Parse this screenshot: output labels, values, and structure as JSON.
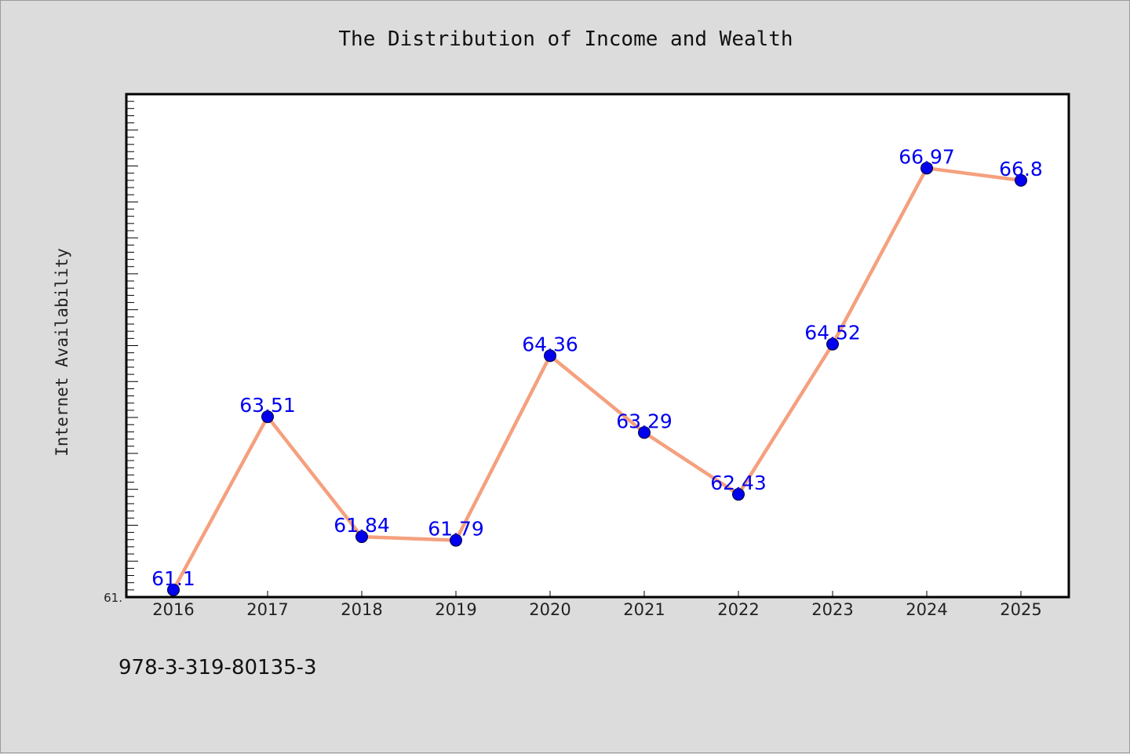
{
  "colors": {
    "background": "#dcdcdc",
    "plot_background": "#ffffff",
    "line": "#f5a07e",
    "marker": "#0000ee",
    "data_label": "#0000ee"
  },
  "chart_data": {
    "type": "line",
    "title": "The Distribution of Income and Wealth",
    "xlabel": "",
    "ylabel": "Internet Availability",
    "categories": [
      "2016",
      "2017",
      "2018",
      "2019",
      "2020",
      "2021",
      "2022",
      "2023",
      "2024",
      "2025"
    ],
    "series": [
      {
        "values": [
          61.1,
          63.51,
          61.84,
          61.79,
          64.36,
          63.29,
          62.43,
          64.52,
          66.97,
          66.8
        ],
        "labels": [
          "61.1",
          "63.51",
          "61.84",
          "61.79",
          "64.36",
          "63.29",
          "62.43",
          "64.52",
          "66.97",
          "66.8"
        ]
      }
    ],
    "ylim": [
      61.0,
      68.0
    ],
    "y_tick_label": "61.",
    "grid": false,
    "legend": "none"
  },
  "footer": {
    "code": "978-3-319-80135-3"
  }
}
